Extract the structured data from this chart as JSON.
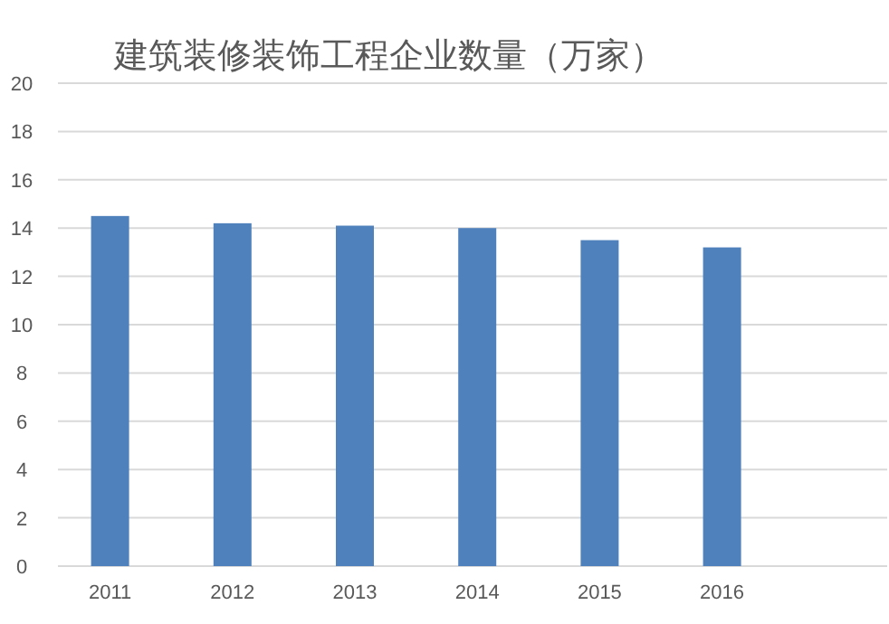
{
  "chart_data": {
    "type": "bar",
    "title": "建筑装修装饰工程企业数量（万家）",
    "categories": [
      "2011",
      "2012",
      "2013",
      "2014",
      "2015",
      "2016"
    ],
    "values": [
      14.5,
      14.2,
      14.1,
      14.0,
      13.5,
      13.2
    ],
    "color": "#4f81bd",
    "ylim": [
      0,
      20
    ],
    "yticks": [
      0,
      2,
      4,
      6,
      8,
      10,
      12,
      14,
      16,
      18,
      20
    ],
    "grid": "y"
  }
}
